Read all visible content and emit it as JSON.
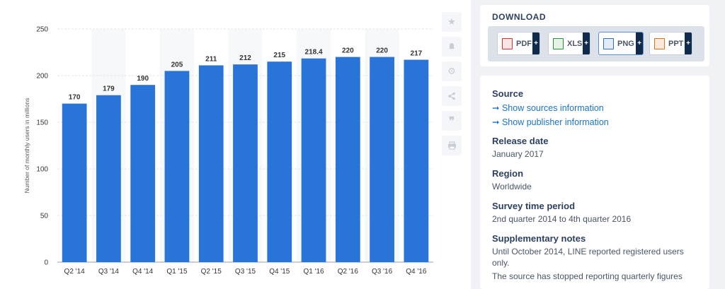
{
  "chart_data": {
    "type": "bar",
    "categories": [
      "Q2 '14",
      "Q3 '14",
      "Q4 '14",
      "Q1 '15",
      "Q2 '15",
      "Q3 '15",
      "Q4 '15",
      "Q1 '16",
      "Q2 '16",
      "Q3 '16",
      "Q4 '16"
    ],
    "values": [
      170,
      179,
      190,
      205,
      211,
      212,
      215,
      218.4,
      220,
      220,
      217
    ],
    "value_labels": [
      "170",
      "179",
      "190",
      "205",
      "211",
      "212",
      "215",
      "218.4",
      "220",
      "220",
      "217"
    ],
    "ylabel": "Number of monthly users in millions",
    "ylim": [
      0,
      250
    ],
    "yticks": [
      0,
      50,
      100,
      150,
      200,
      250
    ],
    "grid": true,
    "bar_color": "#2874d9"
  },
  "toolbar": {
    "icons": [
      "star-icon",
      "bell-icon",
      "gear-icon",
      "share-icon",
      "quote-icon",
      "print-icon"
    ]
  },
  "download": {
    "title": "DOWNLOAD",
    "buttons": [
      {
        "label": "PDF",
        "color": "#d9312b"
      },
      {
        "label": "XLS",
        "color": "#2e8b3a"
      },
      {
        "label": "PNG",
        "color": "#2f6fb8"
      },
      {
        "label": "PPT",
        "color": "#e07020"
      }
    ],
    "plus": "+"
  },
  "info": {
    "source_h": "Source",
    "source_link1": "➞ Show sources information",
    "source_link2": "➞ Show publisher information",
    "release_h": "Release date",
    "release_v": "January 2017",
    "region_h": "Region",
    "region_v": "Worldwide",
    "survey_h": "Survey time period",
    "survey_v": "2nd quarter 2014 to 4th quarter 2016",
    "notes_h": "Supplementary notes",
    "notes_v1": "Until October 2014, LINE reported registered users only.",
    "notes_v2": "The source has stopped reporting quarterly figures"
  }
}
